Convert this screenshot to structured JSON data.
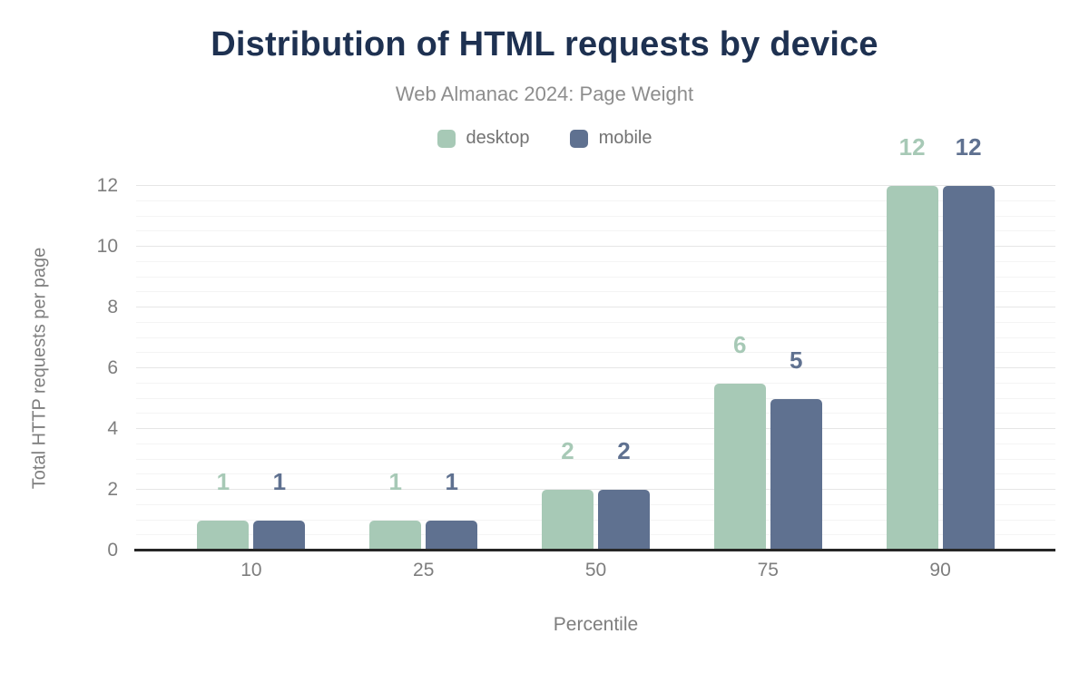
{
  "header": {
    "title": "Distribution of HTML requests by device",
    "subtitle": "Web Almanac 2024: Page Weight"
  },
  "axes": {
    "x_title": "Percentile",
    "y_title": "Total HTTP requests per page"
  },
  "colors": {
    "title": "#1e3151",
    "subtitle": "#8d8d8d",
    "tick_label": "#7e7e7e",
    "axis_line": "#262626",
    "grid_major": "#e6e6e6",
    "grid_minor": "#f4f4f4",
    "desktop": "#a7c9b6",
    "mobile": "#5f7190"
  },
  "chart_data": {
    "type": "bar",
    "title": "Distribution of HTML requests by device",
    "subtitle": "Web Almanac 2024: Page Weight",
    "categories": [
      "10",
      "25",
      "50",
      "75",
      "90"
    ],
    "series": [
      {
        "name": "desktop",
        "color": "#a7c9b6",
        "values": [
          1,
          1,
          2,
          5.5,
          12
        ],
        "labels": [
          "1",
          "1",
          "2",
          "6",
          "12"
        ]
      },
      {
        "name": "mobile",
        "color": "#5f7190",
        "values": [
          1,
          1,
          2,
          5,
          12
        ],
        "labels": [
          "1",
          "1",
          "2",
          "5",
          "12"
        ]
      }
    ],
    "legend": [
      "desktop",
      "mobile"
    ],
    "legend_position": "top-center",
    "xlabel": "Percentile",
    "ylabel": "Total HTTP requests per page",
    "ylim": [
      0,
      12
    ],
    "ytick_step": 2,
    "yticks": [
      0,
      2,
      4,
      6,
      8,
      10,
      12
    ],
    "minor_grid_step": 0.5,
    "grid": "horizontal, major and minor lines"
  }
}
